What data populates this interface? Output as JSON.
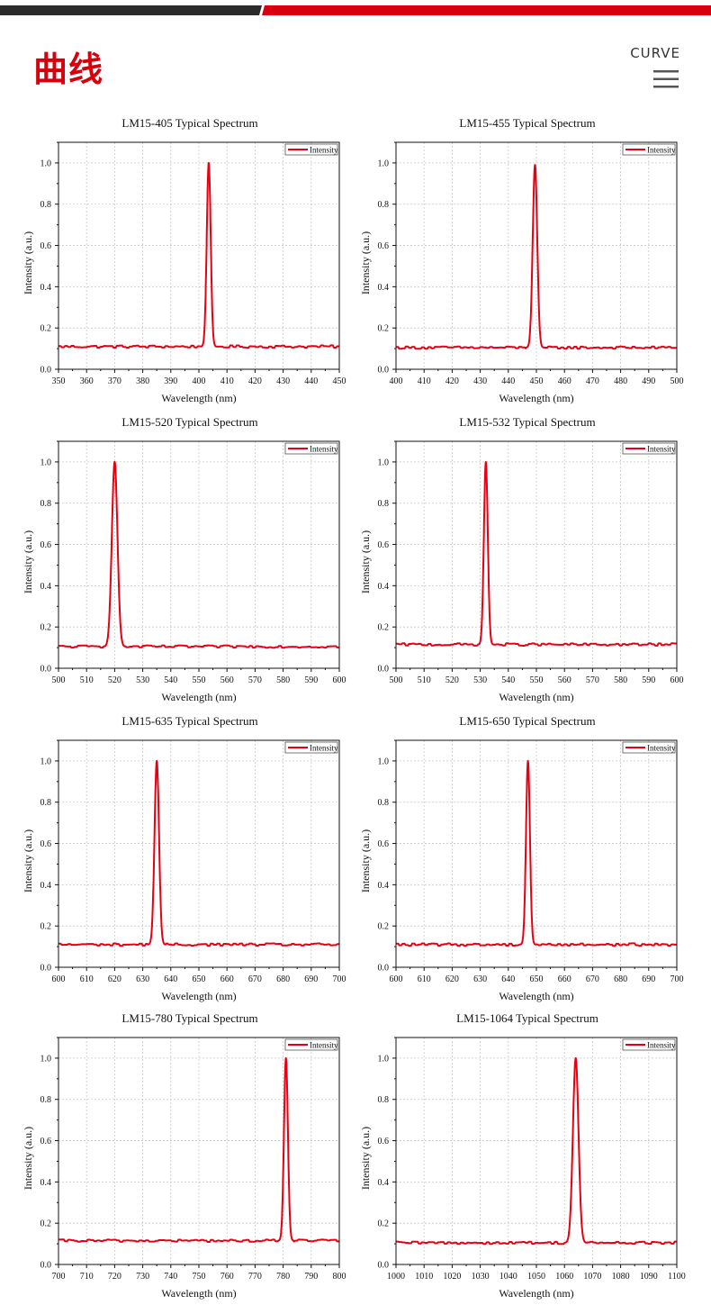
{
  "header": {
    "title": "曲线",
    "subtitle_en": "CURVE",
    "menu_icon": "hamburger-menu-icon",
    "accent_color": "#d9000d",
    "dark_color": "#2b2b2b"
  },
  "chart_style": {
    "line_color": "#e60012",
    "grid": true,
    "legend_position": "top-right"
  },
  "chart_data": [
    {
      "type": "line",
      "title": "LM15-405 Typical Spectrum",
      "xlabel": "Wavelength (nm)",
      "ylabel": "Intensity (a.u.)",
      "legend": "Intensity",
      "xlim": [
        350,
        450
      ],
      "ylim": [
        0,
        1.1
      ],
      "xticks": [
        "350",
        "360",
        "370",
        "380",
        "390",
        "400",
        "410",
        "420",
        "430",
        "440",
        "450"
      ],
      "yticks": [
        "0.0",
        "0.2",
        "0.4",
        "0.6",
        "0.8",
        "1.0"
      ],
      "peak": 403.5,
      "width": 0.7,
      "baseline": 0.11,
      "peak_value": 1.0
    },
    {
      "type": "line",
      "title": "LM15-455 Typical Spectrum",
      "xlabel": "Wavelength (nm)",
      "ylabel": "Intensity (a.u.)",
      "legend": "Intensity",
      "xlim": [
        400,
        500
      ],
      "ylim": [
        0,
        1.1
      ],
      "xticks": [
        "400",
        "410",
        "420",
        "430",
        "440",
        "450",
        "460",
        "470",
        "480",
        "490",
        "500"
      ],
      "yticks": [
        "0.0",
        "0.2",
        "0.4",
        "0.6",
        "0.8",
        "1.0"
      ],
      "peak": 449.5,
      "width": 0.8,
      "baseline": 0.105,
      "peak_value": 0.99
    },
    {
      "type": "line",
      "title": "LM15-520 Typical Spectrum",
      "xlabel": "Wavelength (nm)",
      "ylabel": "Intensity (a.u.)",
      "legend": "Intensity",
      "xlim": [
        500,
        600
      ],
      "ylim": [
        0,
        1.1
      ],
      "xticks": [
        "500",
        "510",
        "520",
        "530",
        "540",
        "550",
        "560",
        "570",
        "580",
        "590",
        "600"
      ],
      "yticks": [
        "0.0",
        "0.2",
        "0.4",
        "0.6",
        "0.8",
        "1.0"
      ],
      "peak": 520,
      "width": 1.0,
      "baseline": 0.105,
      "peak_value": 1.0
    },
    {
      "type": "line",
      "title": "LM15-532 Typical Spectrum",
      "xlabel": "Wavelength (nm)",
      "ylabel": "Intensity (a.u.)",
      "legend": "Intensity",
      "xlim": [
        500,
        600
      ],
      "ylim": [
        0,
        1.1
      ],
      "xticks": [
        "500",
        "510",
        "520",
        "530",
        "540",
        "550",
        "560",
        "570",
        "580",
        "590",
        "600"
      ],
      "yticks": [
        "0.0",
        "0.2",
        "0.4",
        "0.6",
        "0.8",
        "1.0"
      ],
      "peak": 532,
      "width": 0.7,
      "baseline": 0.115,
      "peak_value": 1.0
    },
    {
      "type": "line",
      "title": "LM15-635 Typical Spectrum",
      "xlabel": "Wavelength (nm)",
      "ylabel": "Intensity (a.u.)",
      "legend": "Intensity",
      "xlim": [
        600,
        700
      ],
      "ylim": [
        0,
        1.1
      ],
      "xticks": [
        "600",
        "610",
        "620",
        "630",
        "640",
        "650",
        "660",
        "670",
        "680",
        "690",
        "700"
      ],
      "yticks": [
        "0.0",
        "0.2",
        "0.4",
        "0.6",
        "0.8",
        "1.0"
      ],
      "peak": 635,
      "width": 0.8,
      "baseline": 0.11,
      "peak_value": 1.0
    },
    {
      "type": "line",
      "title": "LM15-650 Typical Spectrum",
      "xlabel": "Wavelength (nm)",
      "ylabel": "Intensity (a.u.)",
      "legend": "Intensity",
      "xlim": [
        600,
        700
      ],
      "ylim": [
        0,
        1.1
      ],
      "xticks": [
        "600",
        "610",
        "620",
        "630",
        "640",
        "650",
        "660",
        "670",
        "680",
        "690",
        "700"
      ],
      "yticks": [
        "0.0",
        "0.2",
        "0.4",
        "0.6",
        "0.8",
        "1.0"
      ],
      "peak": 647,
      "width": 0.7,
      "baseline": 0.11,
      "peak_value": 1.0
    },
    {
      "type": "line",
      "title": "LM15-780 Typical Spectrum",
      "xlabel": "Wavelength (nm)",
      "ylabel": "Intensity (a.u.)",
      "legend": "Intensity",
      "xlim": [
        700,
        800
      ],
      "ylim": [
        0,
        1.1
      ],
      "xticks": [
        "700",
        "710",
        "720",
        "730",
        "740",
        "750",
        "760",
        "770",
        "780",
        "790",
        "800"
      ],
      "yticks": [
        "0.0",
        "0.2",
        "0.4",
        "0.6",
        "0.8",
        "1.0"
      ],
      "peak": 781,
      "width": 0.7,
      "baseline": 0.115,
      "peak_value": 1.0
    },
    {
      "type": "line",
      "title": "LM15-1064 Typical Spectrum",
      "xlabel": "Wavelength (nm)",
      "ylabel": "Intensity (a.u.)",
      "legend": "Intensity",
      "xlim": [
        1000,
        1100
      ],
      "ylim": [
        0,
        1.1
      ],
      "xticks": [
        "1000",
        "1010",
        "1020",
        "1030",
        "1040",
        "1050",
        "1060",
        "1070",
        "1080",
        "1090",
        "1100"
      ],
      "yticks": [
        "0.0",
        "0.2",
        "0.4",
        "0.6",
        "0.8",
        "1.0"
      ],
      "peak": 1064,
      "width": 1.0,
      "baseline": 0.105,
      "peak_value": 1.0
    }
  ]
}
